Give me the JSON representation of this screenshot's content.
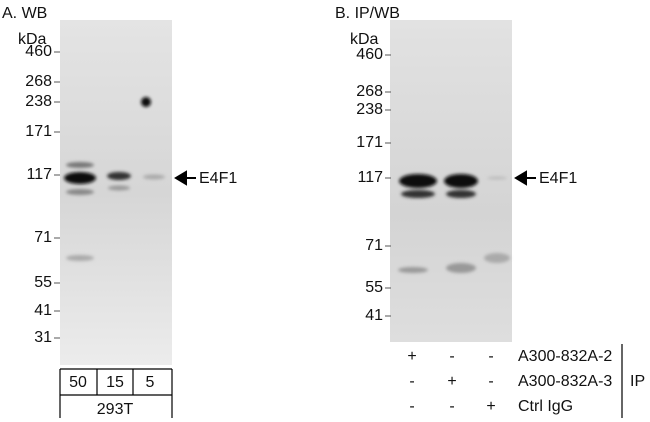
{
  "panel_a": {
    "title": "A. WB",
    "unit": "kDa",
    "markers": [
      "460",
      "268",
      "238",
      "171",
      "117",
      "71",
      "55",
      "41",
      "31"
    ],
    "band_label": "E4F1",
    "lanes": [
      "50",
      "15",
      "5"
    ],
    "cell_line": "293T"
  },
  "panel_b": {
    "title": "B. IP/WB",
    "unit": "kDa",
    "markers": [
      "460",
      "268",
      "238",
      "171",
      "117",
      "71",
      "55",
      "41"
    ],
    "band_label": "E4F1",
    "rows": [
      {
        "marks": [
          "+",
          "-",
          "-"
        ],
        "label": "A300-832A-2"
      },
      {
        "marks": [
          "-",
          "+",
          "-"
        ],
        "label": "A300-832A-3"
      },
      {
        "marks": [
          "-",
          "-",
          "+"
        ],
        "label": "Ctrl IgG"
      }
    ],
    "group_label": "IP"
  }
}
